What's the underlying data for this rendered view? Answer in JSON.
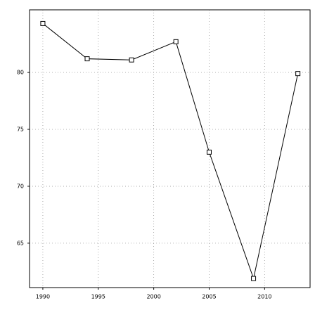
{
  "chart_data": {
    "type": "line",
    "x": [
      1990,
      1994,
      1998,
      2002,
      2005,
      2009,
      2013
    ],
    "series": [
      {
        "color": "#000000",
        "values": [
          84.3,
          81.2,
          81.1,
          82.7,
          73.0,
          61.9,
          79.9
        ]
      }
    ],
    "xlim": [
      1988.8,
      2014.1
    ],
    "xticks": [
      1990,
      1995,
      2000,
      2005,
      2010
    ],
    "ylim": [
      61.1,
      85.5
    ],
    "yticks": [
      65,
      70,
      75,
      80
    ],
    "grid": true
  }
}
